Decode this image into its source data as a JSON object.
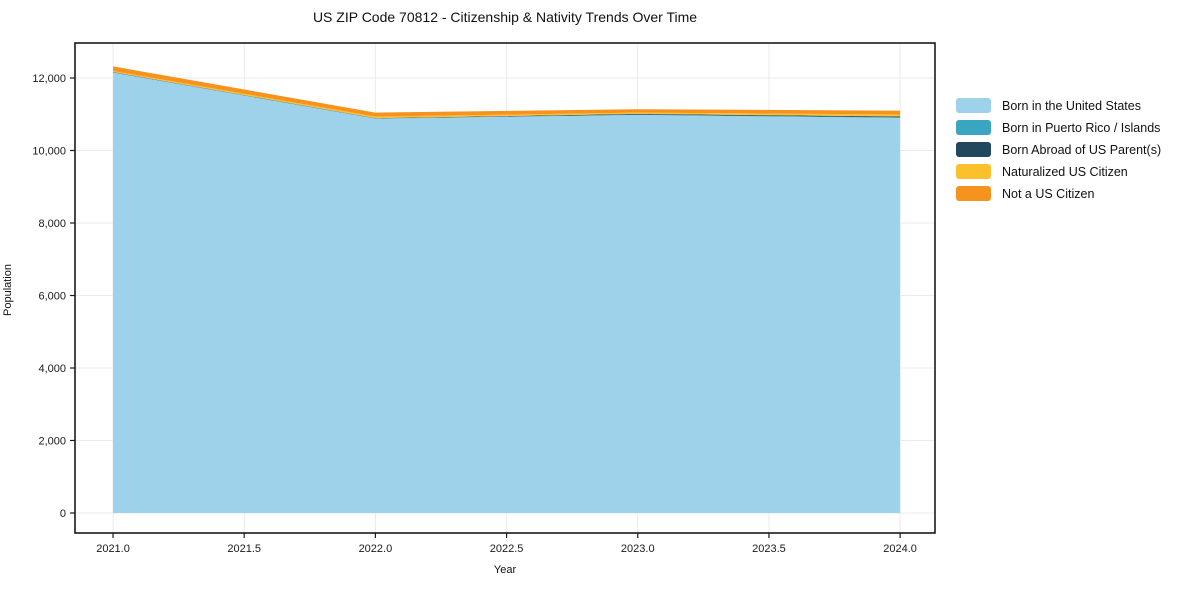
{
  "title": "US ZIP Code 70812 - Citizenship & Nativity Trends Over Time",
  "chart_data": {
    "type": "area",
    "stacked": true,
    "title": "US ZIP Code 70812 - Citizenship & Nativity Trends Over Time",
    "xlabel": "Year",
    "ylabel": "Population",
    "x": [
      2021,
      2022,
      2023,
      2024
    ],
    "xlim": [
      2020.855,
      2024.133
    ],
    "ylim": [
      -552,
      12966
    ],
    "grid": true,
    "grid_color": "#ebebeb",
    "frame_color": "#1a1a1a",
    "legend_position": "right",
    "xticks": {
      "values": [
        2021.0,
        2021.5,
        2022.0,
        2022.5,
        2023.0,
        2023.5,
        2024.0
      ],
      "labels": [
        "2021.0",
        "2021.5",
        "2022.0",
        "2022.5",
        "2023.0",
        "2023.5",
        "2024.0"
      ]
    },
    "yticks": {
      "values": [
        0,
        2000,
        4000,
        6000,
        8000,
        10000,
        12000
      ],
      "labels": [
        "0",
        "2,000",
        "4,000",
        "6,000",
        "8,000",
        "10,000",
        "12,000"
      ]
    },
    "series": [
      {
        "name": "Born in the United States",
        "color": "#9ed1ea",
        "values": [
          12150,
          10880,
          10980,
          10900
        ]
      },
      {
        "name": "Born in Puerto Rico / Islands",
        "color": "#3aa5c1",
        "values": [
          5,
          5,
          10,
          15
        ]
      },
      {
        "name": "Born Abroad of US Parent(s)",
        "color": "#21485c",
        "values": [
          10,
          10,
          20,
          25
        ]
      },
      {
        "name": "Naturalized US Citizen",
        "color": "#fcc02d",
        "values": [
          30,
          40,
          35,
          55
        ]
      },
      {
        "name": "Not a US Citizen",
        "color": "#f6921e",
        "values": [
          125,
          110,
          95,
          105
        ]
      }
    ]
  }
}
